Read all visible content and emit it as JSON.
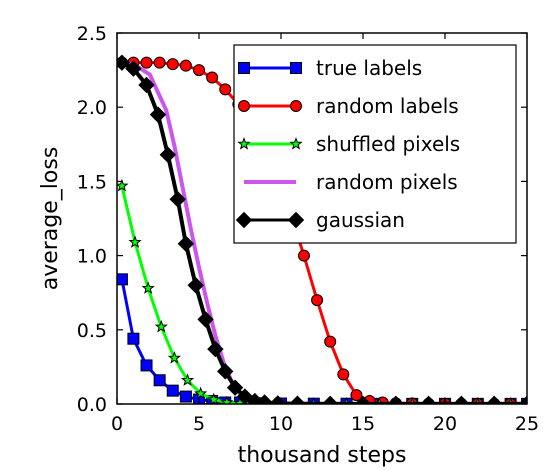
{
  "chart_data": {
    "type": "line",
    "xlabel": "thousand steps",
    "ylabel": "average_loss",
    "xlim": [
      0,
      25
    ],
    "ylim": [
      0,
      2.5
    ],
    "xticks": [
      0,
      5,
      10,
      15,
      20,
      25
    ],
    "yticks": [
      0.0,
      0.5,
      1.0,
      1.5,
      2.0,
      2.5
    ],
    "xtick_labels": [
      "0",
      "5",
      "10",
      "15",
      "20",
      "25"
    ],
    "ytick_labels": [
      "0.0",
      "0.5",
      "1.0",
      "1.5",
      "2.0",
      "2.5"
    ],
    "grid": false,
    "legend_position": "upper-right",
    "series": [
      {
        "name": "true labels",
        "color": "#0000ff",
        "marker": "square",
        "x": [
          0.3,
          1.0,
          1.8,
          2.6,
          3.4,
          4.2,
          5.0,
          5.8,
          6.6,
          7.5,
          8.5,
          10,
          12,
          14,
          16,
          18,
          20,
          22,
          24,
          25
        ],
        "y": [
          0.84,
          0.44,
          0.26,
          0.16,
          0.09,
          0.05,
          0.03,
          0.02,
          0.01,
          0.01,
          0.005,
          0.003,
          0.002,
          0.002,
          0.001,
          0.001,
          0.001,
          0.001,
          0.001,
          0.001
        ]
      },
      {
        "name": "random labels",
        "color": "#ff0000",
        "marker": "circle",
        "x": [
          0.3,
          1.0,
          1.8,
          2.6,
          3.4,
          4.2,
          5.0,
          5.8,
          6.6,
          7.4,
          8.2,
          9.0,
          9.8,
          10.6,
          11.4,
          12.2,
          13.0,
          13.8,
          14.6,
          15.4,
          16.2,
          17.0,
          18,
          19,
          20,
          21,
          22,
          23,
          24,
          25
        ],
        "y": [
          2.3,
          2.3,
          2.3,
          2.3,
          2.29,
          2.28,
          2.25,
          2.2,
          2.12,
          2.02,
          1.89,
          1.72,
          1.52,
          1.28,
          1.0,
          0.7,
          0.42,
          0.2,
          0.06,
          0.02,
          0.01,
          0.005,
          0.003,
          0.002,
          0.002,
          0.001,
          0.001,
          0.001,
          0.001,
          0.001
        ]
      },
      {
        "name": "shuffled pixels",
        "color": "#00ff00",
        "marker": "star",
        "x": [
          0.3,
          1.1,
          1.9,
          2.7,
          3.5,
          4.3,
          5.1,
          5.9,
          6.7,
          7.5,
          8.5,
          10,
          12,
          14,
          16,
          18,
          20,
          22,
          24,
          25
        ],
        "y": [
          1.47,
          1.09,
          0.78,
          0.52,
          0.31,
          0.16,
          0.07,
          0.03,
          0.01,
          0.005,
          0.003,
          0.002,
          0.001,
          0.001,
          0.001,
          0.001,
          0.001,
          0.001,
          0.001,
          0.001
        ]
      },
      {
        "name": "random pixels",
        "color": "#cc55ee",
        "marker": "none",
        "x": [
          0.3,
          1.0,
          2.0,
          3.0,
          3.5,
          4.0,
          4.5,
          5.0,
          5.5,
          6.0,
          6.5,
          7.0,
          7.5,
          8.0,
          8.5,
          9.0,
          10,
          12,
          15,
          20,
          25
        ],
        "y": [
          2.3,
          2.29,
          2.22,
          1.98,
          1.74,
          1.46,
          1.18,
          0.92,
          0.68,
          0.46,
          0.28,
          0.15,
          0.07,
          0.03,
          0.01,
          0.005,
          0.002,
          0.001,
          0.001,
          0.001,
          0.001
        ]
      },
      {
        "name": "gaussian",
        "color": "#000000",
        "marker": "diamond",
        "x": [
          0.3,
          1.0,
          1.8,
          2.5,
          3.1,
          3.7,
          4.2,
          4.8,
          5.4,
          6.0,
          6.6,
          7.2,
          7.8,
          8.4,
          9.0,
          9.8,
          11,
          13,
          15,
          17,
          19,
          21,
          23,
          25
        ],
        "y": [
          2.3,
          2.26,
          2.15,
          1.95,
          1.68,
          1.38,
          1.08,
          0.8,
          0.57,
          0.37,
          0.22,
          0.11,
          0.05,
          0.02,
          0.01,
          0.004,
          0.002,
          0.001,
          0.001,
          0.001,
          0.001,
          0.001,
          0.001,
          0.001
        ]
      }
    ]
  }
}
